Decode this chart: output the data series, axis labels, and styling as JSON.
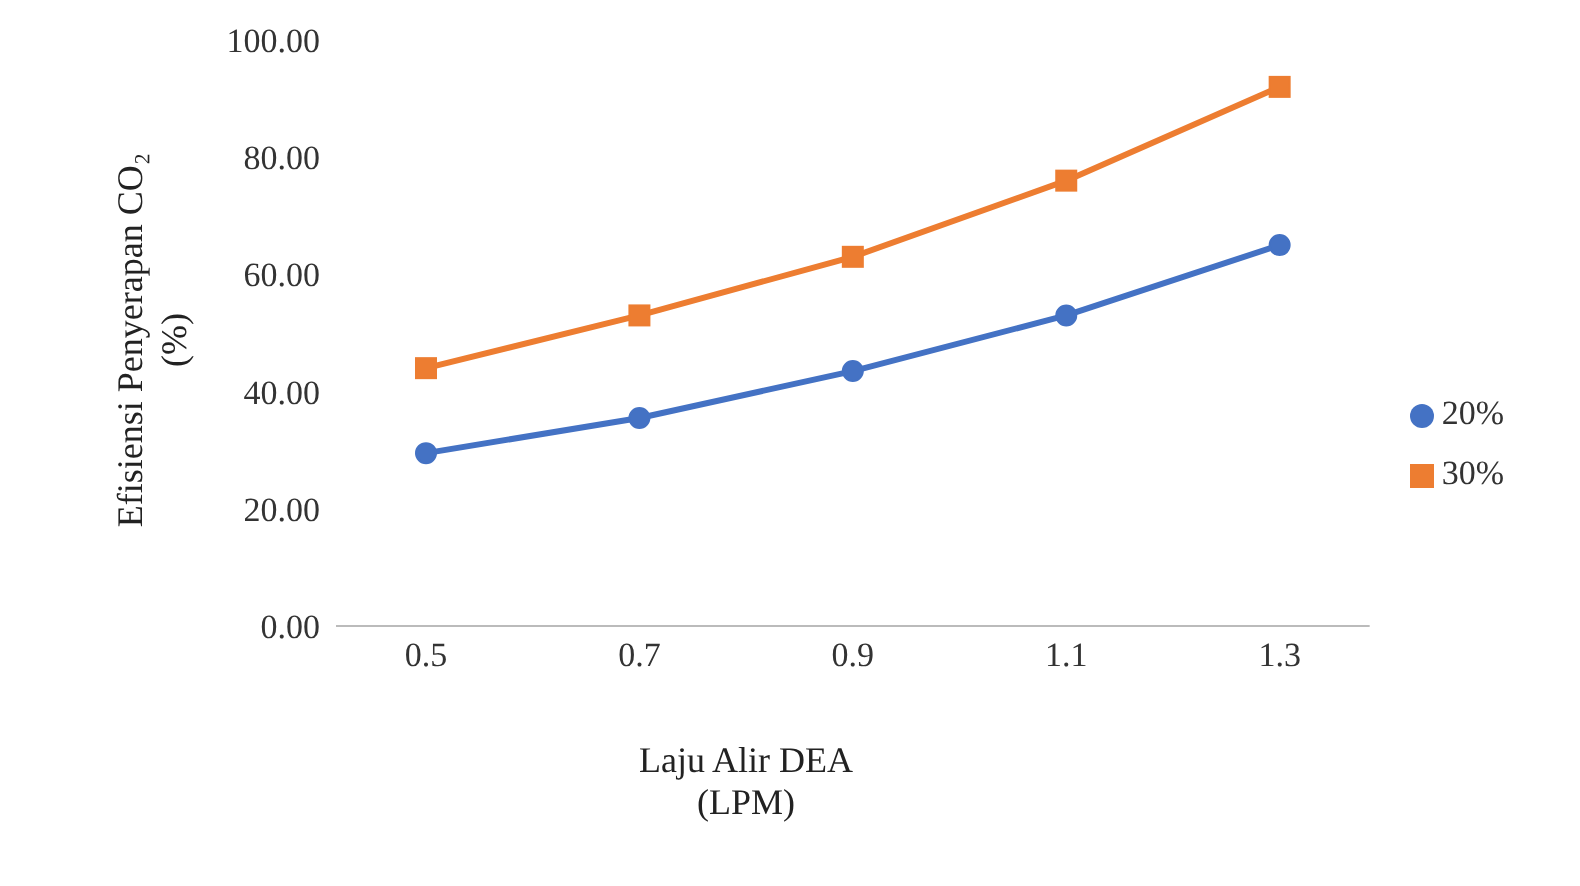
{
  "chart_data": {
    "type": "line",
    "xlabel": "Laju Alir DEA (LPM)",
    "ylabel": "Efisiensi Penyerapan CO₂ (%)",
    "categories": [
      "0.5",
      "0.7",
      "0.9",
      "1.1",
      "1.3"
    ],
    "series": [
      {
        "name": "20%",
        "color": "#4472c4",
        "marker": "circle",
        "values": [
          29.5,
          35.5,
          43.5,
          53,
          65
        ]
      },
      {
        "name": "30%",
        "color": "#ed7d31",
        "marker": "square",
        "values": [
          44,
          53,
          63,
          76,
          92
        ]
      }
    ],
    "ylim": [
      0,
      100
    ],
    "yticks": [
      {
        "value": 0,
        "label": "0.00"
      },
      {
        "value": 20,
        "label": "20.00"
      },
      {
        "value": 40,
        "label": "40.00"
      },
      {
        "value": 60,
        "label": "60.00"
      },
      {
        "value": 80,
        "label": "80.00"
      },
      {
        "value": 100,
        "label": "100.00"
      }
    ],
    "grid": false,
    "legend": "right"
  }
}
